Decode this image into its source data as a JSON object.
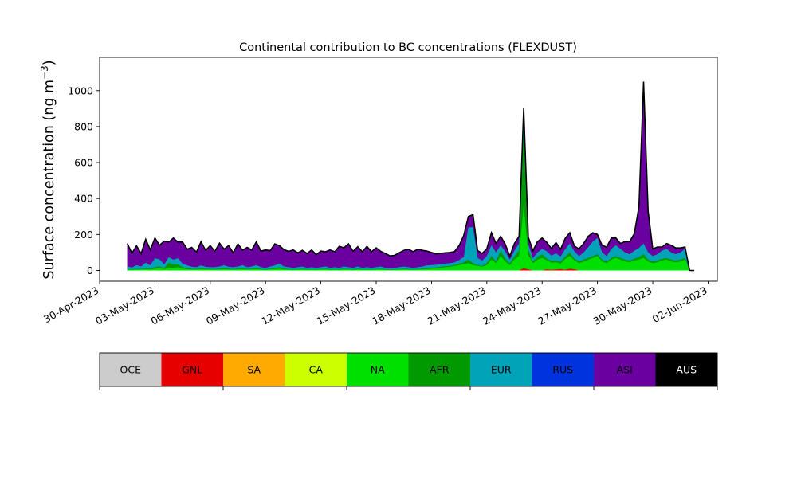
{
  "chart_data": {
    "type": "area",
    "title": "Continental contribution to BC concentrations (FLEXDUST)",
    "ylabel": "Surface concentration (ng m",
    "ylabel_sup": "−3",
    "ylabel_close": ")",
    "ylim": [
      -60,
      1185
    ],
    "yticks": [
      0,
      200,
      400,
      600,
      800,
      1000
    ],
    "xlim": [
      "2023-04-30T00:00",
      "2023-06-02T12:00"
    ],
    "xticks": [
      "2023-04-30",
      "2023-05-03",
      "2023-05-06",
      "2023-05-09",
      "2023-05-12",
      "2023-05-15",
      "2023-05-18",
      "2023-05-21",
      "2023-05-24",
      "2023-05-27",
      "2023-05-30",
      "2023-06-02"
    ],
    "xtick_labels": [
      "30-Apr-2023",
      "03-May-2023",
      "06-May-2023",
      "09-May-2023",
      "12-May-2023",
      "15-May-2023",
      "18-May-2023",
      "21-May-2023",
      "24-May-2023",
      "27-May-2023",
      "30-May-2023",
      "02-Jun-2023"
    ],
    "legend_placement": "below",
    "legend": [
      {
        "label": "OCE",
        "color": "#cccccc"
      },
      {
        "label": "GNL",
        "color": "#e60000"
      },
      {
        "label": "SA",
        "color": "#ffaa00"
      },
      {
        "label": "CA",
        "color": "#ccff00"
      },
      {
        "label": "NA",
        "color": "#00e000"
      },
      {
        "label": "AFR",
        "color": "#009900"
      },
      {
        "label": "EUR",
        "color": "#00a3b8"
      },
      {
        "label": "RUS",
        "color": "#0033dd"
      },
      {
        "label": "ASI",
        "color": "#6a00a0"
      },
      {
        "label": "AUS",
        "color": "#000000"
      }
    ],
    "total_outline_color": "#000000",
    "x_days_series": [
      "2023-05-01T12:00",
      "2023-05-01T18:00",
      "2023-05-02T00:00",
      "2023-05-02T06:00",
      "2023-05-02T12:00",
      "2023-05-02T18:00",
      "2023-05-03T00:00",
      "2023-05-03T06:00",
      "2023-05-03T12:00",
      "2023-05-03T18:00",
      "2023-05-04T00:00",
      "2023-05-04T06:00",
      "2023-05-04T12:00",
      "2023-05-04T18:00",
      "2023-05-05T00:00",
      "2023-05-05T06:00",
      "2023-05-05T12:00",
      "2023-05-05T18:00",
      "2023-05-06T00:00",
      "2023-05-06T06:00",
      "2023-05-06T12:00",
      "2023-05-06T18:00",
      "2023-05-07T00:00",
      "2023-05-07T06:00",
      "2023-05-07T12:00",
      "2023-05-07T18:00",
      "2023-05-08T00:00",
      "2023-05-08T06:00",
      "2023-05-08T12:00",
      "2023-05-08T18:00",
      "2023-05-09T00:00",
      "2023-05-09T06:00",
      "2023-05-09T12:00",
      "2023-05-09T18:00",
      "2023-05-10T00:00",
      "2023-05-10T06:00",
      "2023-05-10T12:00",
      "2023-05-10T18:00",
      "2023-05-11T00:00",
      "2023-05-11T06:00",
      "2023-05-11T12:00",
      "2023-05-11T18:00",
      "2023-05-12T00:00",
      "2023-05-12T06:00",
      "2023-05-12T12:00",
      "2023-05-12T18:00",
      "2023-05-13T00:00",
      "2023-05-13T06:00",
      "2023-05-13T12:00",
      "2023-05-13T18:00",
      "2023-05-14T00:00",
      "2023-05-14T06:00",
      "2023-05-14T12:00",
      "2023-05-14T18:00",
      "2023-05-15T00:00",
      "2023-05-15T06:00",
      "2023-05-15T12:00",
      "2023-05-15T18:00",
      "2023-05-16T00:00",
      "2023-05-16T06:00",
      "2023-05-16T12:00",
      "2023-05-16T18:00",
      "2023-05-17T00:00",
      "2023-05-17T06:00",
      "2023-05-17T12:00",
      "2023-05-17T18:00",
      "2023-05-18T00:00",
      "2023-05-18T06:00",
      "2023-05-18T12:00",
      "2023-05-18T18:00",
      "2023-05-19T00:00",
      "2023-05-19T06:00",
      "2023-05-19T12:00",
      "2023-05-19T18:00",
      "2023-05-20T00:00",
      "2023-05-20T06:00",
      "2023-05-20T12:00",
      "2023-05-20T18:00",
      "2023-05-21T00:00",
      "2023-05-21T06:00",
      "2023-05-21T12:00",
      "2023-05-21T18:00",
      "2023-05-22T00:00",
      "2023-05-22T06:00",
      "2023-05-22T12:00",
      "2023-05-22T18:00",
      "2023-05-23T00:00",
      "2023-05-23T06:00",
      "2023-05-23T12:00",
      "2023-05-23T18:00",
      "2023-05-24T00:00",
      "2023-05-24T06:00",
      "2023-05-24T12:00",
      "2023-05-24T18:00",
      "2023-05-25T00:00",
      "2023-05-25T06:00",
      "2023-05-25T12:00",
      "2023-05-25T18:00",
      "2023-05-26T00:00",
      "2023-05-26T06:00",
      "2023-05-26T12:00",
      "2023-05-26T18:00",
      "2023-05-27T00:00",
      "2023-05-27T06:00",
      "2023-05-27T12:00",
      "2023-05-27T18:00",
      "2023-05-28T00:00",
      "2023-05-28T06:00",
      "2023-05-28T12:00",
      "2023-05-28T18:00",
      "2023-05-29T00:00",
      "2023-05-29T06:00",
      "2023-05-29T12:00",
      "2023-05-29T18:00",
      "2023-05-30T00:00",
      "2023-05-30T06:00",
      "2023-05-30T12:00",
      "2023-05-30T18:00",
      "2023-05-31T00:00",
      "2023-05-31T06:00",
      "2023-05-31T12:00",
      "2023-05-31T18:00",
      "2023-06-01T00:00",
      "2023-06-01T06:00"
    ],
    "series": [
      {
        "label": "GNL",
        "values": [
          0,
          0,
          0,
          0,
          0,
          0,
          0,
          0,
          0,
          0,
          0,
          0,
          0,
          0,
          0,
          0,
          0,
          0,
          0,
          0,
          0,
          0,
          0,
          0,
          0,
          0,
          0,
          0,
          0,
          0,
          0,
          0,
          0,
          0,
          0,
          0,
          0,
          0,
          0,
          0,
          0,
          0,
          0,
          0,
          0,
          0,
          0,
          0,
          0,
          0,
          0,
          0,
          0,
          0,
          0,
          0,
          0,
          0,
          0,
          0,
          0,
          0,
          0,
          0,
          0,
          0,
          0,
          0,
          0,
          0,
          0,
          0,
          0,
          0,
          0,
          0,
          0,
          0,
          0,
          0,
          0,
          0,
          0,
          0,
          0,
          0,
          12,
          5,
          0,
          0,
          0,
          6,
          3,
          5,
          8,
          3,
          10,
          6,
          0,
          0,
          0,
          0,
          0,
          0,
          0,
          0,
          0,
          0,
          0,
          0,
          0,
          0,
          0,
          0,
          0,
          0,
          0,
          0,
          0,
          0,
          0,
          0
        ]
      },
      {
        "label": "NA",
        "values": [
          5,
          4,
          6,
          5,
          8,
          6,
          10,
          12,
          8,
          14,
          15,
          18,
          10,
          8,
          6,
          5,
          8,
          6,
          5,
          5,
          6,
          8,
          6,
          5,
          6,
          8,
          5,
          6,
          8,
          5,
          4,
          6,
          8,
          10,
          6,
          5,
          4,
          5,
          6,
          4,
          5,
          4,
          5,
          6,
          4,
          5,
          4,
          6,
          5,
          4,
          6,
          4,
          5,
          4,
          5,
          6,
          4,
          3,
          4,
          5,
          6,
          5,
          4,
          5,
          6,
          8,
          10,
          12,
          15,
          18,
          20,
          25,
          30,
          35,
          40,
          30,
          25,
          20,
          30,
          60,
          40,
          80,
          50,
          30,
          60,
          80,
          350,
          80,
          40,
          60,
          70,
          50,
          40,
          40,
          30,
          60,
          70,
          50,
          40,
          50,
          60,
          70,
          80,
          50,
          40,
          60,
          70,
          60,
          50,
          45,
          55,
          60,
          70,
          50,
          40,
          45,
          55,
          60,
          50,
          45,
          50,
          60
        ]
      },
      {
        "label": "AFR",
        "values": [
          2,
          2,
          3,
          2,
          5,
          3,
          8,
          10,
          5,
          30,
          20,
          15,
          8,
          5,
          4,
          3,
          5,
          4,
          3,
          3,
          4,
          6,
          4,
          3,
          4,
          6,
          3,
          4,
          6,
          3,
          2,
          4,
          5,
          8,
          4,
          3,
          2,
          3,
          4,
          2,
          3,
          2,
          3,
          4,
          2,
          3,
          2,
          4,
          3,
          2,
          4,
          2,
          3,
          2,
          3,
          4,
          2,
          2,
          2,
          3,
          4,
          3,
          2,
          3,
          4,
          5,
          5,
          5,
          5,
          5,
          5,
          5,
          8,
          10,
          20,
          10,
          5,
          5,
          10,
          20,
          10,
          30,
          15,
          10,
          20,
          30,
          400,
          30,
          10,
          15,
          20,
          10,
          10,
          10,
          10,
          15,
          20,
          10,
          10,
          10,
          10,
          10,
          10,
          10,
          10,
          10,
          10,
          10,
          10,
          10,
          10,
          15,
          20,
          10,
          10,
          10,
          10,
          10,
          10,
          10,
          10,
          10
        ]
      },
      {
        "label": "EUR",
        "values": [
          15,
          10,
          20,
          15,
          30,
          20,
          50,
          40,
          20,
          30,
          25,
          35,
          20,
          15,
          10,
          10,
          15,
          10,
          10,
          10,
          12,
          15,
          10,
          10,
          12,
          15,
          10,
          12,
          15,
          10,
          8,
          12,
          15,
          20,
          12,
          10,
          8,
          10,
          12,
          8,
          10,
          8,
          10,
          12,
          8,
          10,
          8,
          12,
          10,
          8,
          12,
          8,
          10,
          8,
          10,
          12,
          8,
          6,
          8,
          10,
          12,
          10,
          8,
          10,
          12,
          15,
          15,
          15,
          15,
          15,
          15,
          15,
          20,
          30,
          180,
          200,
          40,
          30,
          40,
          60,
          50,
          30,
          40,
          20,
          30,
          40,
          100,
          30,
          20,
          25,
          30,
          40,
          30,
          40,
          30,
          40,
          50,
          40,
          30,
          40,
          60,
          80,
          90,
          40,
          30,
          50,
          60,
          50,
          40,
          35,
          45,
          50,
          60,
          40,
          30,
          35,
          45,
          50,
          40,
          35,
          40,
          50
        ]
      },
      {
        "label": "ASI",
        "values": [
          128,
          80,
          108,
          72,
          130,
          86,
          112,
          78,
          130,
          84,
          120,
          90,
          120,
          90,
          108,
          84,
          132,
          92,
          120,
          88,
          130,
          90,
          118,
          80,
          126,
          84,
          110,
          92,
          130,
          90,
          100,
          88,
          120,
          100,
          94,
          88,
          100,
          80,
          90,
          80,
          96,
          74,
          90,
          82,
          100,
          86,
          120,
          104,
          130,
          92,
          110,
          90,
          116,
          90,
          108,
          84,
          80,
          70,
          70,
          80,
          90,
          100,
          90,
          100,
          90,
          80,
          70,
          60,
          60,
          60,
          60,
          60,
          80,
          120,
          60,
          70,
          40,
          40,
          40,
          70,
          50,
          50,
          40,
          20,
          40,
          40,
          40,
          40,
          40,
          60,
          60,
          50,
          40,
          60,
          40,
          60,
          60,
          30,
          40,
          50,
          60,
          50,
          20,
          40,
          50,
          60,
          40,
          30,
          60,
          70,
          95,
          230,
          900,
          230,
          40,
          40,
          20,
          30,
          40,
          35,
          25,
          10
        ]
      },
      {
        "label": "AUS",
        "values": [
          0,
          0,
          0,
          0,
          0,
          0,
          0,
          0,
          0,
          0,
          0,
          0,
          0,
          0,
          0,
          0,
          0,
          0,
          0,
          0,
          0,
          0,
          0,
          0,
          0,
          0,
          0,
          0,
          0,
          0,
          0,
          0,
          0,
          0,
          0,
          0,
          0,
          0,
          0,
          0,
          0,
          0,
          0,
          0,
          0,
          0,
          0,
          0,
          0,
          0,
          0,
          0,
          0,
          0,
          0,
          0,
          0,
          0,
          0,
          0,
          0,
          0,
          0,
          0,
          0,
          0,
          0,
          0,
          0,
          0,
          0,
          0,
          0,
          0,
          0,
          0,
          0,
          0,
          0,
          0,
          0,
          0,
          0,
          0,
          0,
          0,
          0,
          0,
          0,
          0,
          0,
          0,
          0,
          0,
          0,
          0,
          0,
          0,
          0,
          0,
          0,
          0,
          0,
          0,
          0,
          0,
          0,
          0,
          0,
          0,
          0,
          0,
          0,
          0,
          0,
          0,
          0,
          0,
          0,
          0,
          0,
          0
        ]
      }
    ]
  }
}
